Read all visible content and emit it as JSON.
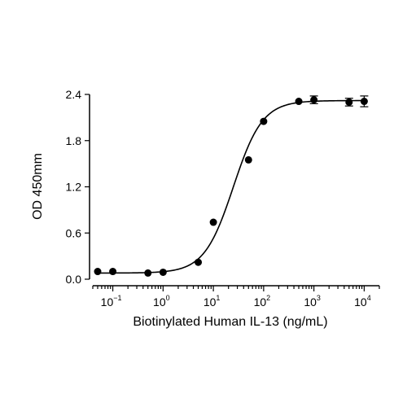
{
  "chart_data": {
    "type": "scatter",
    "title": "",
    "xlabel": "Biotinylated Human IL-13 (ng/mL)",
    "ylabel": "OD 450mm",
    "x_scale": "log",
    "xlim": [
      0.04,
      20000
    ],
    "ylim": [
      0,
      2.4
    ],
    "y_ticks": [
      0.0,
      0.6,
      1.2,
      1.8,
      2.4
    ],
    "y_tick_labels": [
      "0.0",
      "0.6",
      "1.2",
      "1.8",
      "2.4"
    ],
    "x_ticks": [
      {
        "value": 0.1,
        "base": "10",
        "exp": "−1"
      },
      {
        "value": 1,
        "base": "10",
        "exp": "0"
      },
      {
        "value": 10,
        "base": "10",
        "exp": "1"
      },
      {
        "value": 100,
        "base": "10",
        "exp": "2"
      },
      {
        "value": 1000,
        "base": "10",
        "exp": "3"
      },
      {
        "value": 10000,
        "base": "10",
        "exp": "4"
      }
    ],
    "grid": false,
    "series": [
      {
        "points": [
          {
            "x": 0.05,
            "y": 0.1,
            "err": 0.0
          },
          {
            "x": 0.1,
            "y": 0.1,
            "err": 0.0
          },
          {
            "x": 0.5,
            "y": 0.08,
            "err": 0.0
          },
          {
            "x": 1,
            "y": 0.09,
            "err": 0.0
          },
          {
            "x": 5,
            "y": 0.22,
            "err": 0.0
          },
          {
            "x": 10,
            "y": 0.74,
            "err": 0.0
          },
          {
            "x": 50,
            "y": 1.55,
            "err": 0.0
          },
          {
            "x": 100,
            "y": 2.05,
            "err": 0.0
          },
          {
            "x": 500,
            "y": 2.31,
            "err": 0.0
          },
          {
            "x": 1000,
            "y": 2.33,
            "err": 0.05
          },
          {
            "x": 5000,
            "y": 2.3,
            "err": 0.05
          },
          {
            "x": 10000,
            "y": 2.31,
            "err": 0.07
          }
        ],
        "fit": {
          "model": "4PL",
          "bottom": 0.08,
          "top": 2.32,
          "ec50": 25,
          "hill": 1.5
        }
      }
    ]
  }
}
